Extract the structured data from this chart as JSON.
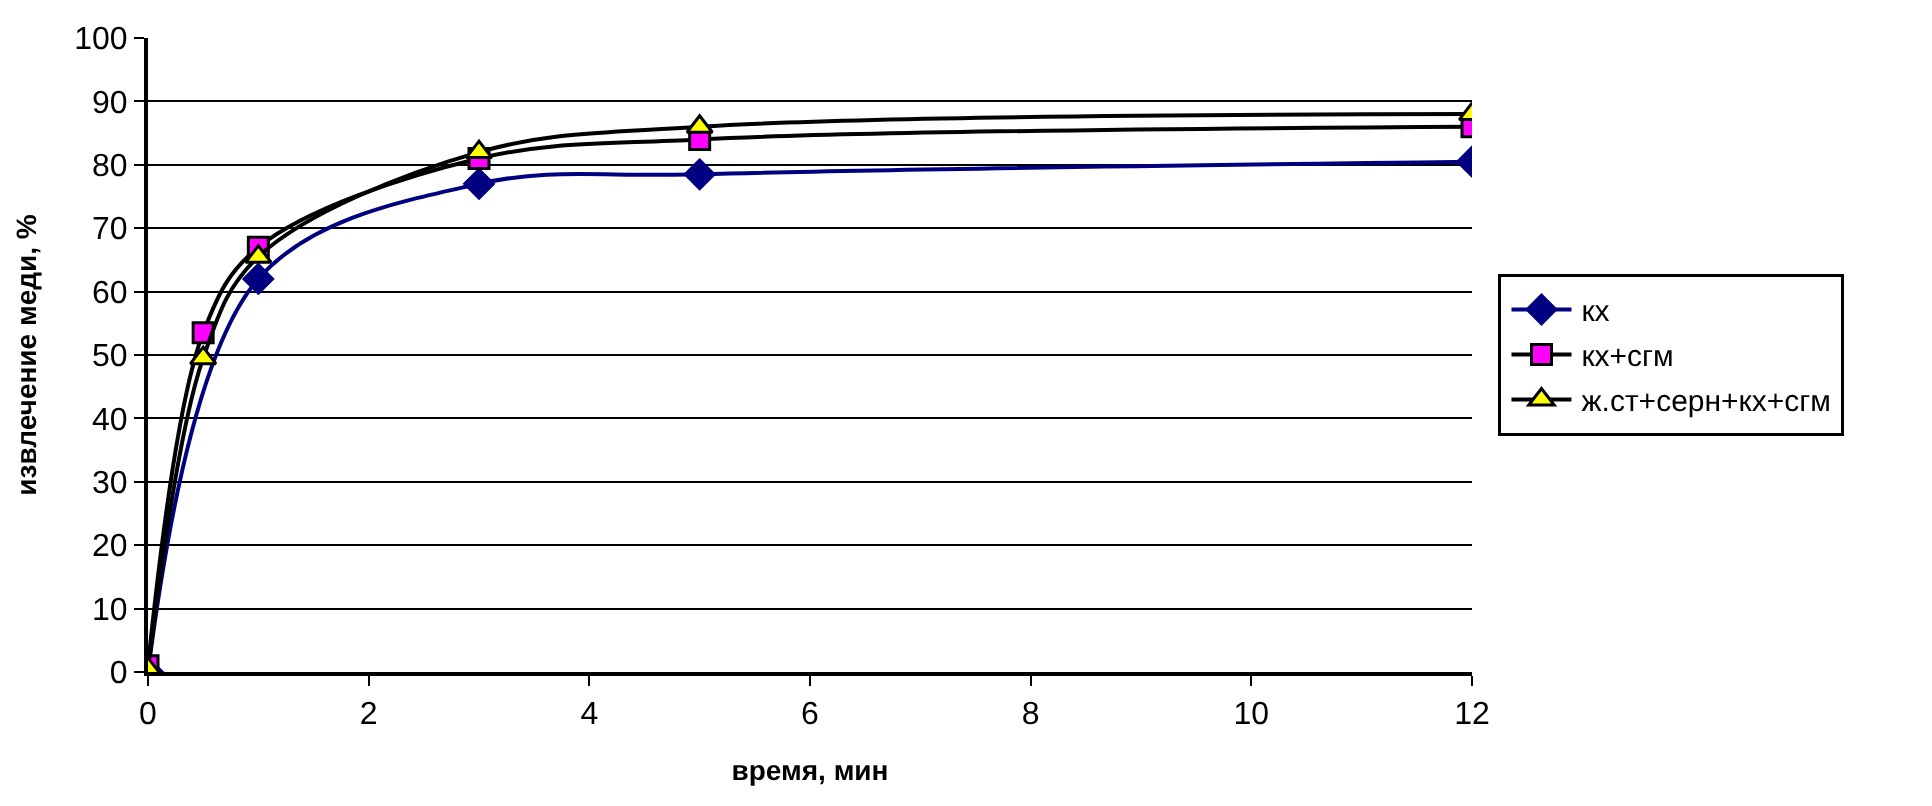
{
  "chart_data": {
    "type": "line",
    "xlabel": "время, мин",
    "ylabel": "извлечение меди, %",
    "x": [
      0,
      0.5,
      1,
      3,
      5,
      12
    ],
    "xlim": [
      0,
      12
    ],
    "xticks": [
      0,
      2,
      4,
      6,
      8,
      10,
      12
    ],
    "ylim": [
      0,
      100
    ],
    "yticks": [
      0,
      10,
      20,
      30,
      40,
      50,
      60,
      70,
      80,
      90,
      100
    ],
    "grid": "y",
    "legend": "right",
    "series": [
      {
        "name": "кх",
        "color": "#000080",
        "marker": "diamond",
        "values": [
          0,
          null,
          62,
          77,
          78.5,
          80.5
        ]
      },
      {
        "name": "кх+сгм",
        "color": "#ff00ff",
        "marker": "square",
        "values": [
          1,
          53.5,
          67,
          81,
          84,
          86
        ]
      },
      {
        "name": "ж.ст+серн+кх+сгм",
        "color": "#ffff00",
        "marker": "triangle",
        "values": [
          0.5,
          49.5,
          65.5,
          82,
          86,
          88
        ]
      }
    ]
  }
}
